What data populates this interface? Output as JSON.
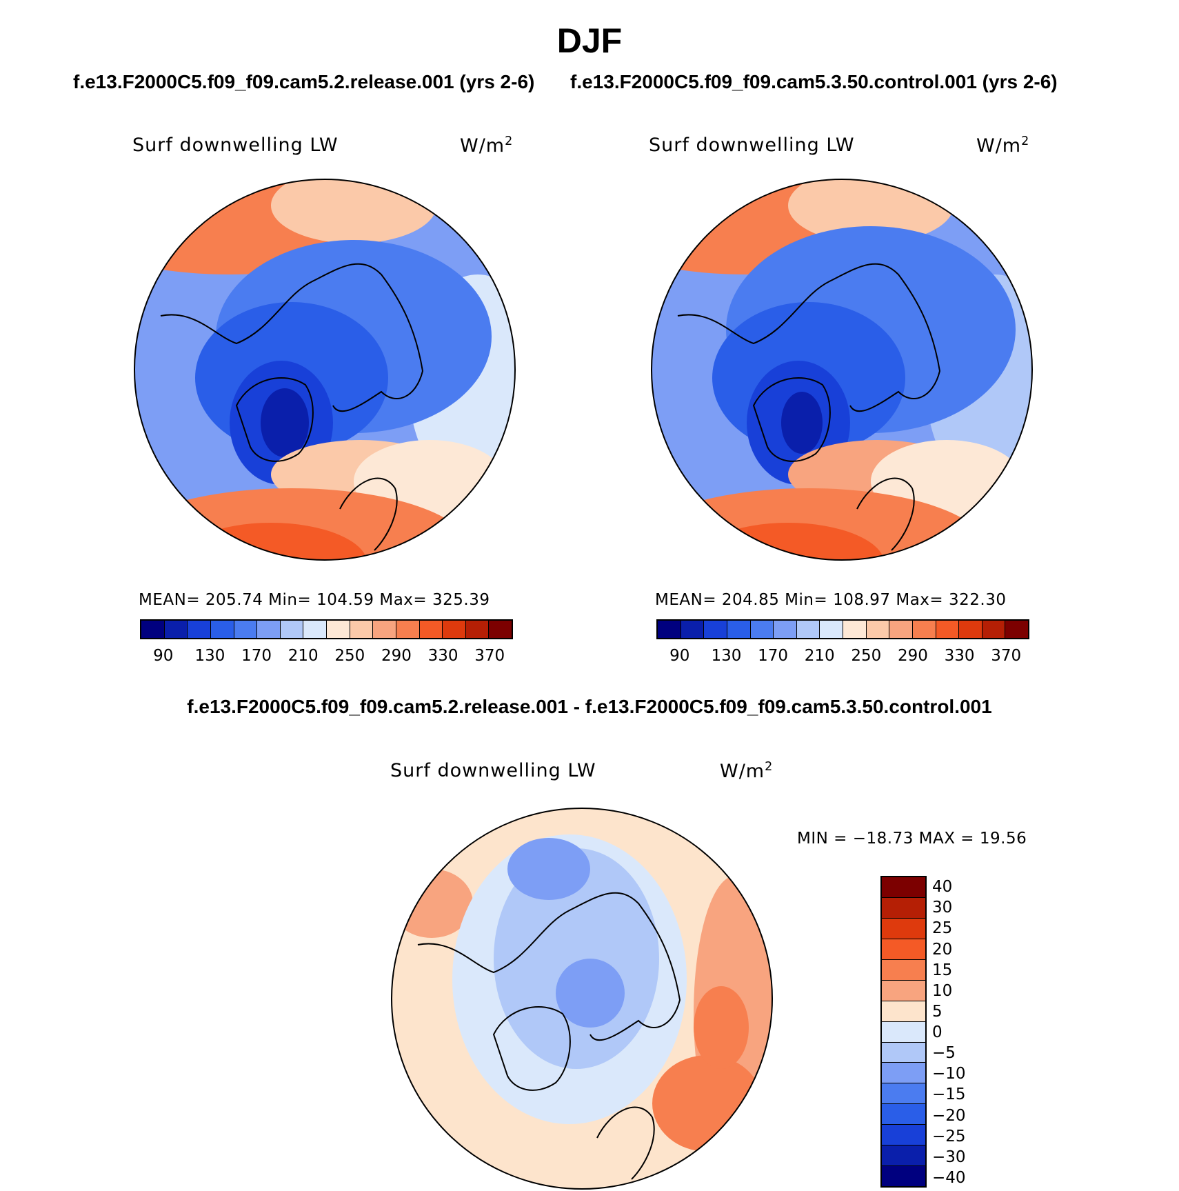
{
  "header": {
    "title": "DJF",
    "case1": "f.e13.F2000C5.f09_f09.cam5.2.release.001 (yrs 2-6)",
    "case2": "f.e13.F2000C5.f09_f09.cam5.3.50.control.001 (yrs 2-6)",
    "diff_title": "f.e13.F2000C5.f09_f09.cam5.2.release.001 - f.e13.F2000C5.f09_f09.cam5.3.50.control.001"
  },
  "panels": {
    "left": {
      "label": "Surf downwelling LW",
      "units": "W/m",
      "units_sup": "2",
      "stats": "MEAN= 205.74   Min= 104.59   Max= 325.39"
    },
    "right": {
      "label": "Surf downwelling LW",
      "units": "W/m",
      "units_sup": "2",
      "stats": "MEAN= 204.85   Min= 108.97   Max= 322.30"
    },
    "diff": {
      "label": "Surf downwelling LW",
      "units": "W/m",
      "units_sup": "2",
      "minmax": "MIN = −18.73 MAX =  19.56"
    }
  },
  "colors": {
    "abs_scale": [
      "#00007f",
      "#0a1fab",
      "#1840d8",
      "#2a5ee8",
      "#4b7cf0",
      "#7d9ef5",
      "#b0c8f8",
      "#dae8fb",
      "#fde8d6",
      "#fbc9a9",
      "#f8a47f",
      "#f77f4f",
      "#f45a26",
      "#de3a0d",
      "#b51f05",
      "#7c0000"
    ],
    "diff_scale": [
      "#7c0000",
      "#b51f05",
      "#de3a0d",
      "#f45a26",
      "#f77f4f",
      "#f8a47f",
      "#fde4cc",
      "#dae8fb",
      "#b0c8f8",
      "#7d9ef5",
      "#4b7cf0",
      "#2a5ee8",
      "#1840d8",
      "#0a1fab",
      "#00007f"
    ]
  },
  "chart_data": [
    {
      "type": "heatmap",
      "projection": "north polar stereographic",
      "title": "Surf downwelling LW",
      "case": "f.e13.F2000C5.f09_f09.cam5.2.release.001 (yrs 2-6)",
      "units": "W/m2",
      "mean": 205.74,
      "min": 104.59,
      "max": 325.39,
      "levels": [
        90,
        110,
        130,
        150,
        170,
        190,
        210,
        230,
        250,
        270,
        290,
        310,
        330,
        350,
        370
      ],
      "tick_labels": [
        "90",
        "130",
        "170",
        "210",
        "250",
        "290",
        "330",
        "370"
      ]
    },
    {
      "type": "heatmap",
      "projection": "north polar stereographic",
      "title": "Surf downwelling LW",
      "case": "f.e13.F2000C5.f09_f09.cam5.3.50.control.001 (yrs 2-6)",
      "units": "W/m2",
      "mean": 204.85,
      "min": 108.97,
      "max": 322.3,
      "levels": [
        90,
        110,
        130,
        150,
        170,
        190,
        210,
        230,
        250,
        270,
        290,
        310,
        330,
        350,
        370
      ],
      "tick_labels": [
        "90",
        "130",
        "170",
        "210",
        "250",
        "290",
        "330",
        "370"
      ]
    },
    {
      "type": "heatmap",
      "projection": "north polar stereographic",
      "title": "Surf downwelling LW",
      "case": "f.e13.F2000C5.f09_f09.cam5.2.release.001 - f.e13.F2000C5.f09_f09.cam5.3.50.control.001",
      "units": "W/m2",
      "min": -18.73,
      "max": 19.56,
      "levels": [
        40,
        30,
        25,
        20,
        15,
        10,
        5,
        0,
        -5,
        -10,
        -15,
        -20,
        -25,
        -30,
        -40
      ],
      "tick_labels": [
        "40",
        "30",
        "25",
        "20",
        "15",
        "10",
        "5",
        "0",
        "−5",
        "−10",
        "−15",
        "−20",
        "−25",
        "−30",
        "−40"
      ]
    }
  ]
}
